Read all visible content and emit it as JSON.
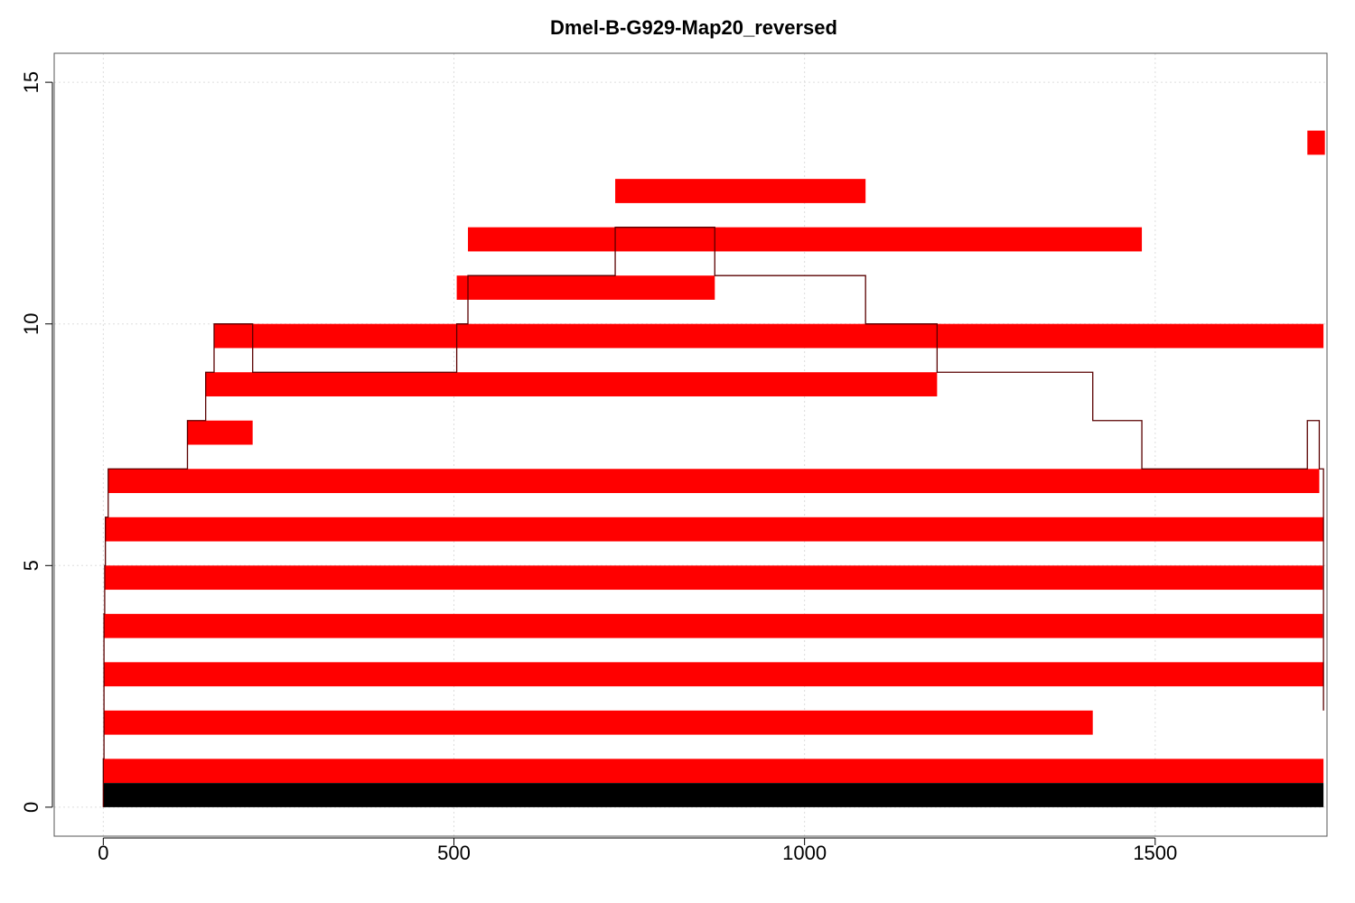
{
  "chart_data": {
    "type": "bar",
    "title": "Dmel-B-G929-Map20_reversed",
    "xlabel": "",
    "ylabel": "",
    "xlim": [
      -70,
      1745
    ],
    "ylim": [
      -0.6,
      15.6
    ],
    "x_ticks": [
      0,
      500,
      1000,
      1500
    ],
    "y_ticks": [
      0,
      5,
      10,
      15
    ],
    "grid": true,
    "colors": {
      "read": "#ff0000",
      "reference": "#000000",
      "coverage": "#5a0000",
      "grid": "#dddddd",
      "frame": "#555555"
    },
    "reference_segment": {
      "start": 0,
      "end": 1740,
      "y_bottom": 0,
      "y_top": 0.5
    },
    "segments": [
      {
        "start": 0,
        "end": 1740,
        "row": 1
      },
      {
        "start": 1,
        "end": 1411,
        "row": 2
      },
      {
        "start": 1,
        "end": 1740,
        "row": 3
      },
      {
        "start": 1,
        "end": 1739,
        "row": 4
      },
      {
        "start": 2,
        "end": 1739,
        "row": 5
      },
      {
        "start": 3,
        "end": 1740,
        "row": 6
      },
      {
        "start": 7,
        "end": 1734,
        "row": 7
      },
      {
        "start": 120,
        "end": 213,
        "row": 8
      },
      {
        "start": 146,
        "end": 1189,
        "row": 9
      },
      {
        "start": 158,
        "end": 1740,
        "row": 10
      },
      {
        "start": 504,
        "end": 872,
        "row": 11
      },
      {
        "start": 520,
        "end": 1481,
        "row": 12
      },
      {
        "start": 730,
        "end": 1087,
        "row": 13
      },
      {
        "start": 1717,
        "end": 1742,
        "row": 14
      }
    ],
    "coverage": [
      {
        "x": 0,
        "y": 0
      },
      {
        "x": 0,
        "y": 1
      },
      {
        "x": 1,
        "y": 2
      },
      {
        "x": 1,
        "y": 4
      },
      {
        "x": 2,
        "y": 5
      },
      {
        "x": 3,
        "y": 6
      },
      {
        "x": 7,
        "y": 7
      },
      {
        "x": 120,
        "y": 8
      },
      {
        "x": 146,
        "y": 9
      },
      {
        "x": 158,
        "y": 10
      },
      {
        "x": 213,
        "y": 9
      },
      {
        "x": 504,
        "y": 10
      },
      {
        "x": 520,
        "y": 11
      },
      {
        "x": 730,
        "y": 12
      },
      {
        "x": 872,
        "y": 11
      },
      {
        "x": 1087,
        "y": 10
      },
      {
        "x": 1189,
        "y": 9
      },
      {
        "x": 1411,
        "y": 8
      },
      {
        "x": 1481,
        "y": 7
      },
      {
        "x": 1717,
        "y": 8
      },
      {
        "x": 1734,
        "y": 7
      },
      {
        "x": 1740,
        "y": 2
      }
    ]
  }
}
